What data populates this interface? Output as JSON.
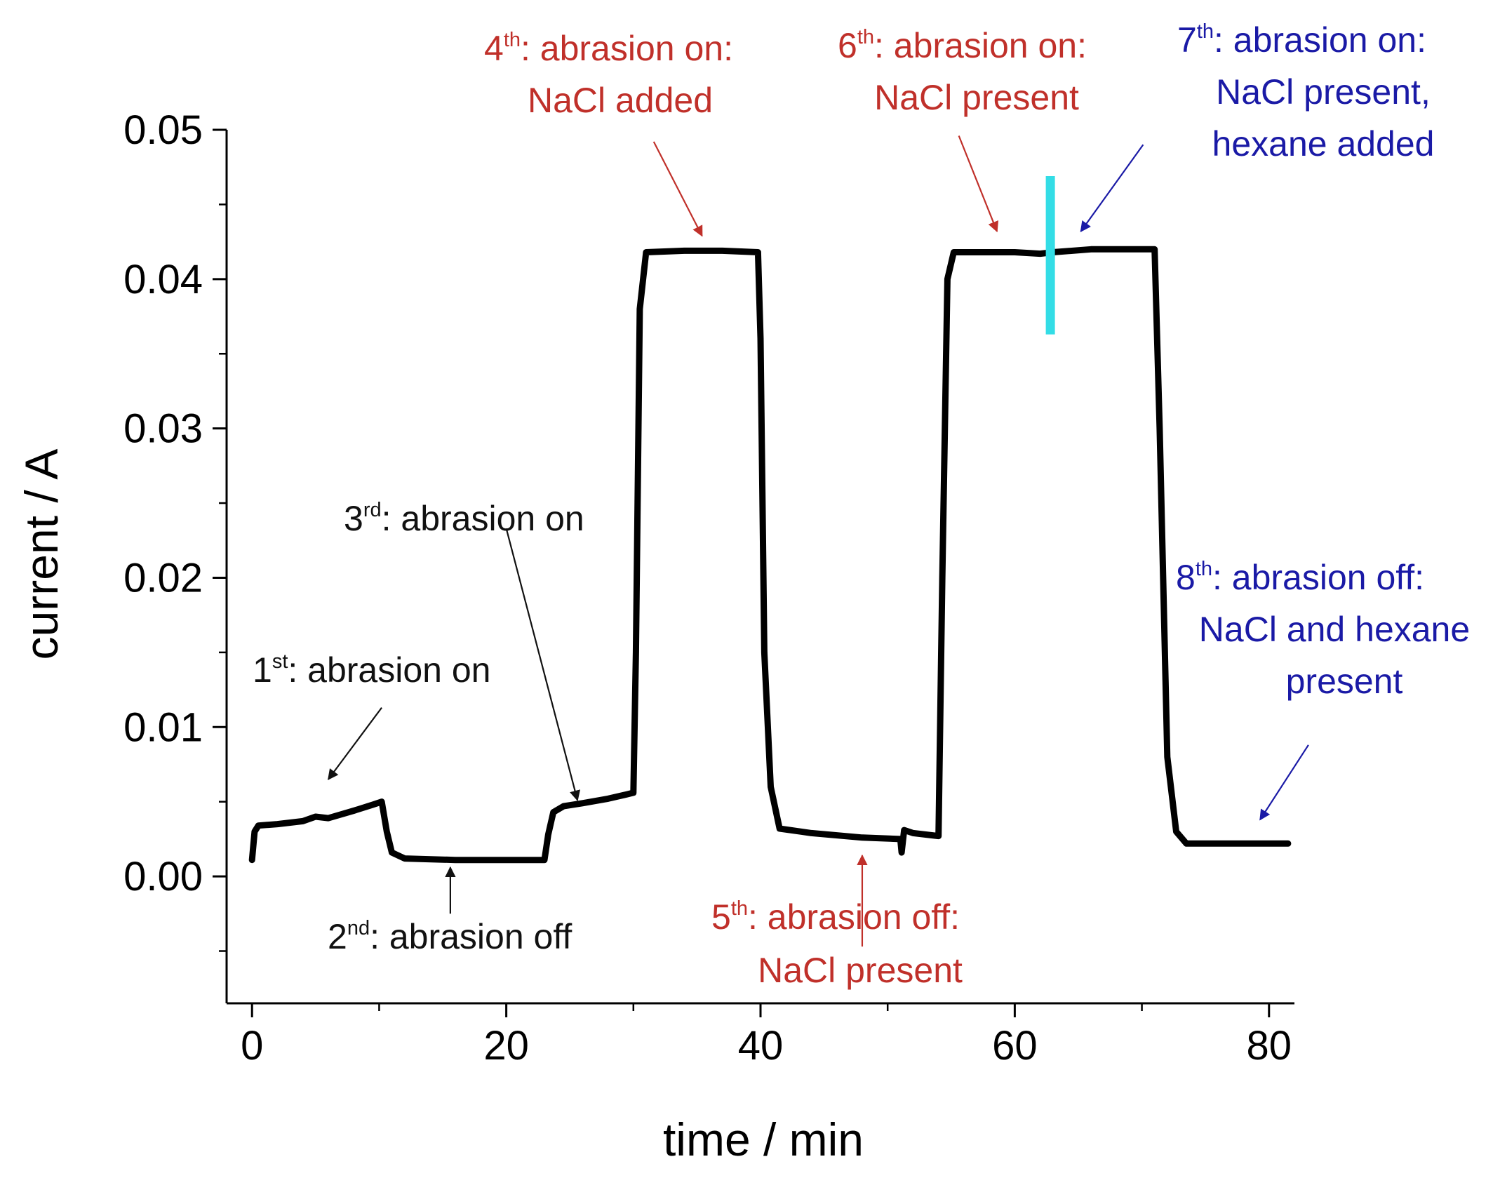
{
  "chart_data": {
    "type": "line",
    "title": "",
    "xlabel": "time / min",
    "ylabel": "current / A",
    "xlim": [
      -2,
      82
    ],
    "ylim": [
      -0.0085,
      0.05
    ],
    "x_ticks": [
      0,
      20,
      40,
      60,
      80
    ],
    "x_tick_labels": [
      "0",
      "20",
      "40",
      "60",
      "80"
    ],
    "y_ticks": [
      0.0,
      0.01,
      0.02,
      0.03,
      0.04,
      0.05
    ],
    "y_tick_labels": [
      "0.00",
      "0.01",
      "0.02",
      "0.03",
      "0.04",
      "0.05"
    ],
    "grid": false,
    "series": [
      {
        "name": "current",
        "color": "#000000",
        "points": [
          [
            0.0,
            0.0011
          ],
          [
            0.2,
            0.003
          ],
          [
            0.5,
            0.0034
          ],
          [
            2,
            0.0035
          ],
          [
            4,
            0.0037
          ],
          [
            5,
            0.004
          ],
          [
            6,
            0.0039
          ],
          [
            8,
            0.0044
          ],
          [
            9.5,
            0.0048
          ],
          [
            10.2,
            0.005
          ],
          [
            10.6,
            0.003
          ],
          [
            11.0,
            0.0016
          ],
          [
            12,
            0.0012
          ],
          [
            16,
            0.0011
          ],
          [
            20,
            0.0011
          ],
          [
            23.0,
            0.0011
          ],
          [
            23.3,
            0.0028
          ],
          [
            23.7,
            0.0043
          ],
          [
            24.5,
            0.0047
          ],
          [
            26,
            0.0049
          ],
          [
            28,
            0.0052
          ],
          [
            29.5,
            0.0055
          ],
          [
            30.0,
            0.0056
          ],
          [
            30.2,
            0.015
          ],
          [
            30.5,
            0.038
          ],
          [
            31.0,
            0.0418
          ],
          [
            34,
            0.0419
          ],
          [
            37,
            0.0419
          ],
          [
            39.8,
            0.0418
          ],
          [
            40.0,
            0.036
          ],
          [
            40.3,
            0.015
          ],
          [
            40.8,
            0.006
          ],
          [
            41.5,
            0.0032
          ],
          [
            44,
            0.0029
          ],
          [
            48,
            0.0026
          ],
          [
            51.0,
            0.0025
          ],
          [
            51.1,
            0.0016
          ],
          [
            51.3,
            0.0031
          ],
          [
            52,
            0.0029
          ],
          [
            53,
            0.0028
          ],
          [
            54.0,
            0.0027
          ],
          [
            54.3,
            0.02
          ],
          [
            54.7,
            0.04
          ],
          [
            55.2,
            0.0418
          ],
          [
            60,
            0.0418
          ],
          [
            62,
            0.0417
          ],
          [
            63,
            0.0418
          ],
          [
            66,
            0.042
          ],
          [
            71.0,
            0.042
          ],
          [
            71.4,
            0.03
          ],
          [
            72.0,
            0.008
          ],
          [
            72.7,
            0.003
          ],
          [
            73.5,
            0.0022
          ],
          [
            78,
            0.0022
          ],
          [
            81.5,
            0.0022
          ]
        ]
      }
    ],
    "marker_line": {
      "x": 62.8,
      "y_range": [
        0.0363,
        0.0469
      ],
      "color": "#33dde6"
    },
    "annotations": [
      {
        "id": "a1",
        "num": "1",
        "sup": "st",
        "line1": ": abrasion on",
        "line2": "",
        "line3": "",
        "color": "#111111",
        "arrow": [
          [
            10.2,
            0.0113
          ],
          [
            6.0,
            0.0065
          ]
        ]
      },
      {
        "id": "a2",
        "num": "2",
        "sup": "nd",
        "line1": ": abrasion off",
        "line2": "",
        "line3": "",
        "color": "#111111",
        "arrow": [
          [
            15.6,
            -0.0025
          ],
          [
            15.6,
            0.0006
          ]
        ]
      },
      {
        "id": "a3",
        "num": "3",
        "sup": "rd",
        "line1": ": abrasion on",
        "line2": "",
        "line3": "",
        "color": "#111111",
        "arrow": [
          [
            20.0,
            0.0233
          ],
          [
            25.6,
            0.0051
          ]
        ]
      },
      {
        "id": "a4",
        "num": "4",
        "sup": "th",
        "line1": ": abrasion on:",
        "line2": "NaCl added",
        "line3": "",
        "color": "#c0302a",
        "arrow": [
          [
            31.6,
            0.0492
          ],
          [
            35.4,
            0.0429
          ]
        ]
      },
      {
        "id": "a5",
        "num": "5",
        "sup": "th",
        "line1": ": abrasion off:",
        "line2": "NaCl present",
        "line3": "",
        "color": "#c0302a",
        "arrow": [
          [
            48.0,
            -0.0047
          ],
          [
            48.0,
            0.0014
          ]
        ]
      },
      {
        "id": "a6",
        "num": "6",
        "sup": "th",
        "line1": ": abrasion on:",
        "line2": "NaCl present",
        "line3": "",
        "color": "#c0302a",
        "arrow": [
          [
            55.6,
            0.0496
          ],
          [
            58.6,
            0.0432
          ]
        ]
      },
      {
        "id": "a7",
        "num": "7",
        "sup": "th",
        "line1": ": abrasion on:",
        "line2": "NaCl present,",
        "line3": "hexane added",
        "color": "#1a1aa6",
        "arrow": [
          [
            70.1,
            0.049
          ],
          [
            65.2,
            0.0432
          ]
        ]
      },
      {
        "id": "a8",
        "num": "8",
        "sup": "th",
        "line1": ": abrasion off:",
        "line2": "NaCl and hexane",
        "line3": "present",
        "color": "#1a1aa6",
        "arrow": [
          [
            83.1,
            0.0088
          ],
          [
            79.3,
            0.0038
          ]
        ]
      }
    ]
  }
}
